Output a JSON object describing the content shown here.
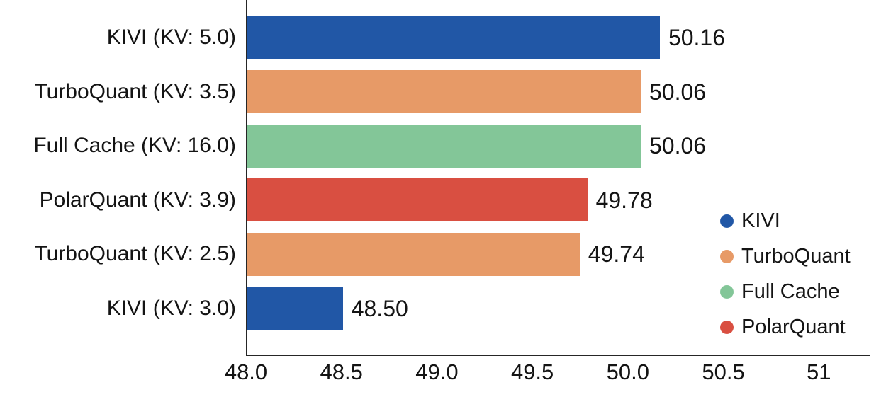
{
  "chart_data": {
    "type": "bar",
    "orientation": "horizontal",
    "title": "",
    "xlabel": "",
    "ylabel": "",
    "categories": [
      "KIVI (KV: 5.0)",
      "TurboQuant (KV: 3.5)",
      "Full Cache (KV: 16.0)",
      "PolarQuant (KV: 3.9)",
      "TurboQuant (KV: 2.5)",
      "KIVI (KV: 3.0)"
    ],
    "values": [
      50.16,
      50.06,
      50.06,
      49.78,
      49.74,
      48.5
    ],
    "value_labels": [
      "50.16",
      "50.06",
      "50.06",
      "49.78",
      "49.74",
      "48.50"
    ],
    "bar_series": [
      "KIVI",
      "TurboQuant",
      "Full Cache",
      "PolarQuant",
      "TurboQuant",
      "KIVI"
    ],
    "bar_colors": [
      "#2157A6",
      "#E79A67",
      "#83C698",
      "#D94F41",
      "#E79A67",
      "#2157A6"
    ],
    "xlim": [
      48.0,
      51.27
    ],
    "xticks": [
      48.0,
      48.5,
      49.0,
      49.5,
      50.0,
      50.5,
      51.0
    ],
    "xtick_labels": [
      "48.0",
      "48.5",
      "49.0",
      "49.5",
      "50.0",
      "50.5",
      "51"
    ],
    "grid": false,
    "spines": [
      "left",
      "bottom"
    ],
    "legend": {
      "position": "center-right",
      "entries": [
        {
          "label": "KIVI",
          "color": "#2157A6"
        },
        {
          "label": "TurboQuant",
          "color": "#E79A67"
        },
        {
          "label": "Full Cache",
          "color": "#83C698"
        },
        {
          "label": "PolarQuant",
          "color": "#D94F41"
        }
      ]
    }
  },
  "colors": {
    "background": "#ffffff",
    "axis": "#262626",
    "text": "#141414"
  }
}
